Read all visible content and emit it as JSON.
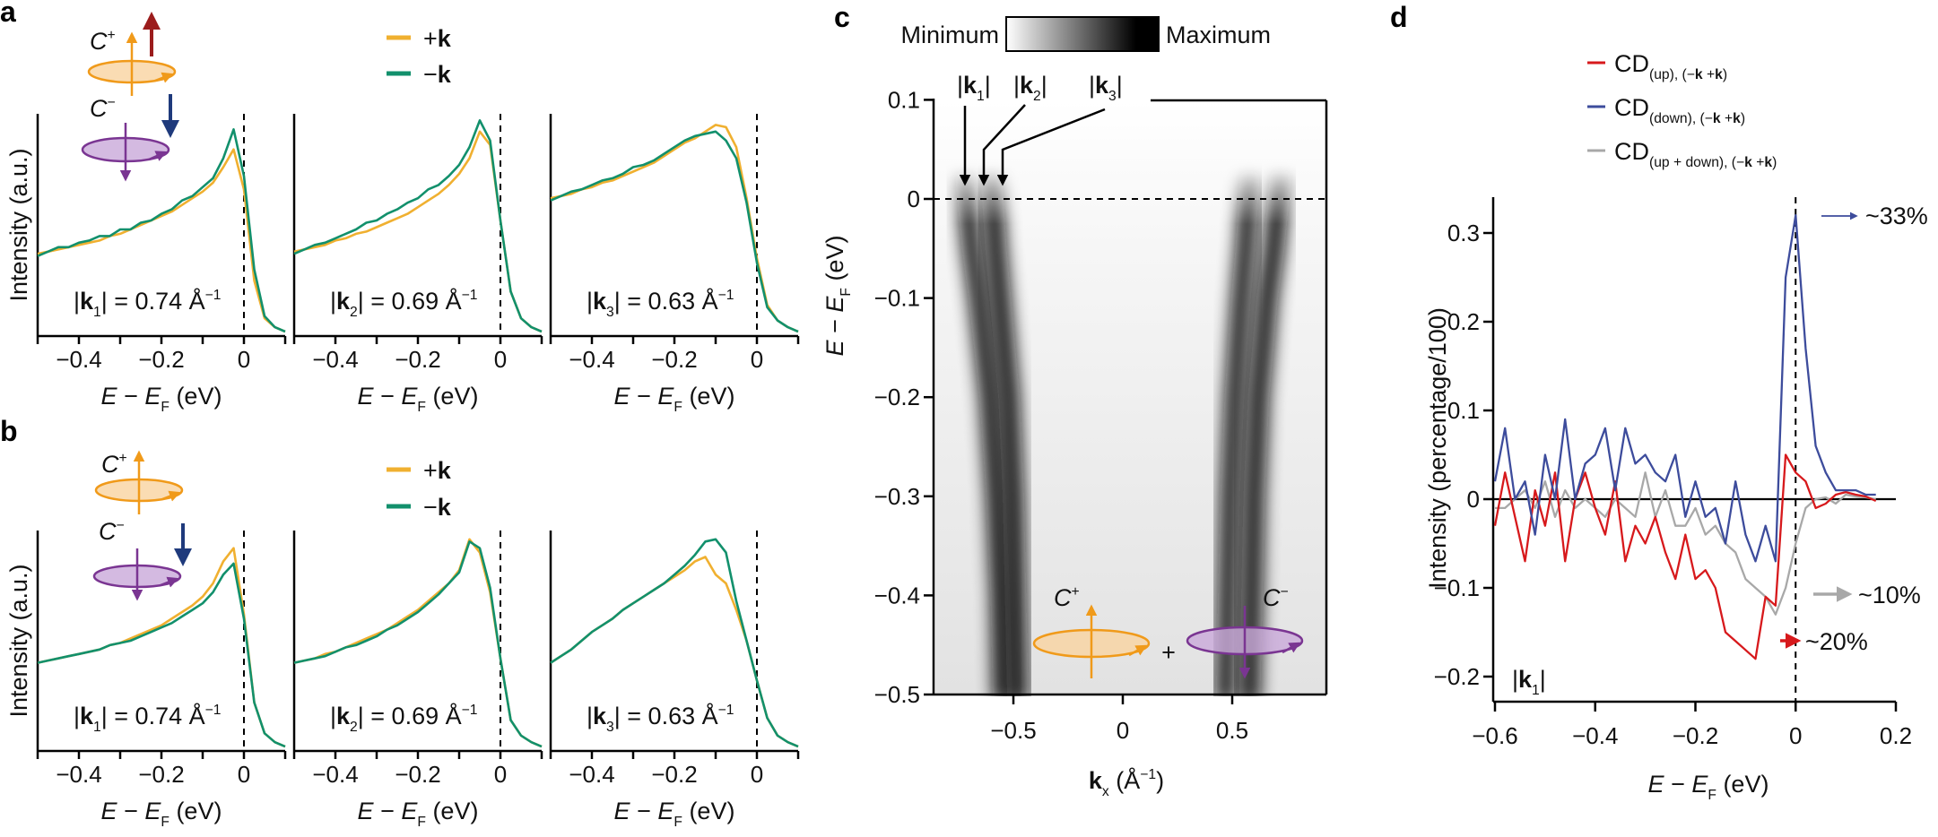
{
  "colors": {
    "plus_k": "#f0b030",
    "minus_k": "#12906c",
    "cd_up": "#d7191c",
    "cd_down": "#3d4c9c",
    "cd_sum": "#a8a8a8",
    "c_plus": "#f09a1a",
    "c_plus_fill": "#f9d3a0",
    "c_minus": "#7a3592",
    "c_minus_fill": "#c9a9d9",
    "spin_up": "#9b1c1c",
    "spin_down": "#1f3a7c"
  },
  "chart_data": [
    {
      "panel": "a",
      "type": "line",
      "legend": [
        {
          "sign": "+",
          "symbol": "k"
        },
        {
          "sign": "−",
          "symbol": "k"
        }
      ],
      "icons": {
        "c_plus": "C",
        "c_plus_sup": "+",
        "c_minus": "C",
        "c_minus_sup": "−",
        "spin_up_arrow": "arrow-up-icon",
        "spin_down_arrow": "arrow-down-icon"
      },
      "ylabel": "Intensity (a.u.)",
      "xlabel": {
        "e": "E",
        "minus": " − ",
        "ef": "E",
        "sub": "F",
        "unit": " (eV)"
      },
      "xlim": [
        -0.5,
        0.1
      ],
      "xticks": [
        "−0.4",
        "−0.2",
        "0"
      ],
      "x": [
        -0.5,
        -0.475,
        -0.45,
        -0.425,
        -0.4,
        -0.375,
        -0.35,
        -0.325,
        -0.3,
        -0.275,
        -0.25,
        -0.225,
        -0.2,
        -0.175,
        -0.15,
        -0.125,
        -0.1,
        -0.075,
        -0.05,
        -0.025,
        0,
        0.025,
        0.05,
        0.075,
        0.1
      ],
      "subplots": [
        {
          "k_label": {
            "bar": "|",
            "k": "k",
            "sub": "1",
            "rest": " = 0.74 Å",
            "sup": "−1"
          },
          "plus_k": [
            0.37,
            0.38,
            0.39,
            0.4,
            0.41,
            0.42,
            0.43,
            0.45,
            0.46,
            0.48,
            0.5,
            0.52,
            0.54,
            0.56,
            0.59,
            0.62,
            0.65,
            0.69,
            0.76,
            0.84,
            0.66,
            0.25,
            0.08,
            0.04,
            0.02
          ],
          "minus_k": [
            0.36,
            0.38,
            0.4,
            0.4,
            0.42,
            0.43,
            0.45,
            0.45,
            0.48,
            0.48,
            0.51,
            0.52,
            0.55,
            0.57,
            0.61,
            0.63,
            0.67,
            0.71,
            0.8,
            0.93,
            0.72,
            0.3,
            0.09,
            0.04,
            0.02
          ]
        },
        {
          "k_label": {
            "bar": "|",
            "k": "k",
            "sub": "2",
            "rest": " = 0.69 Å",
            "sup": "−1"
          },
          "plus_k": [
            0.38,
            0.39,
            0.4,
            0.41,
            0.43,
            0.44,
            0.46,
            0.47,
            0.49,
            0.51,
            0.53,
            0.55,
            0.58,
            0.61,
            0.64,
            0.68,
            0.73,
            0.8,
            0.92,
            0.86,
            0.52,
            0.2,
            0.08,
            0.04,
            0.02
          ],
          "minus_k": [
            0.37,
            0.39,
            0.41,
            0.42,
            0.44,
            0.46,
            0.48,
            0.51,
            0.52,
            0.55,
            0.57,
            0.6,
            0.62,
            0.66,
            0.68,
            0.72,
            0.77,
            0.85,
            0.97,
            0.88,
            0.52,
            0.2,
            0.08,
            0.04,
            0.02
          ]
        },
        {
          "k_label": {
            "bar": "|",
            "k": "k",
            "sub": "3",
            "rest": " = 0.63 Å",
            "sup": "−1"
          },
          "plus_k": [
            0.62,
            0.63,
            0.64,
            0.66,
            0.67,
            0.69,
            0.7,
            0.72,
            0.74,
            0.76,
            0.78,
            0.81,
            0.84,
            0.87,
            0.89,
            0.92,
            0.95,
            0.94,
            0.85,
            0.62,
            0.35,
            0.14,
            0.07,
            0.04,
            0.02
          ],
          "minus_k": [
            0.61,
            0.63,
            0.65,
            0.66,
            0.68,
            0.7,
            0.71,
            0.73,
            0.76,
            0.77,
            0.79,
            0.82,
            0.85,
            0.88,
            0.9,
            0.91,
            0.92,
            0.88,
            0.8,
            0.6,
            0.33,
            0.13,
            0.07,
            0.04,
            0.02
          ]
        }
      ]
    },
    {
      "panel": "b",
      "type": "line",
      "legend": [
        {
          "sign": "+",
          "symbol": "k"
        },
        {
          "sign": "−",
          "symbol": "k"
        }
      ],
      "icons": {
        "c_plus": "C",
        "c_plus_sup": "+",
        "c_minus": "C",
        "c_minus_sup": "−",
        "spin_down_arrow": "arrow-down-icon"
      },
      "ylabel": "Intensity (a.u.)",
      "xlabel": {
        "e": "E",
        "minus": " − ",
        "ef": "E",
        "sub": "F",
        "unit": " (eV)"
      },
      "xlim": [
        -0.5,
        0.1
      ],
      "xticks": [
        "−0.4",
        "−0.2",
        "0"
      ],
      "x": [
        -0.5,
        -0.475,
        -0.45,
        -0.425,
        -0.4,
        -0.375,
        -0.35,
        -0.325,
        -0.3,
        -0.275,
        -0.25,
        -0.225,
        -0.2,
        -0.175,
        -0.15,
        -0.125,
        -0.1,
        -0.075,
        -0.05,
        -0.025,
        0,
        0.025,
        0.05,
        0.075,
        0.1
      ],
      "subplots": [
        {
          "k_label": {
            "bar": "|",
            "k": "k",
            "sub": "1",
            "rest": " = 0.74 Å",
            "sup": "−1"
          },
          "plus_k": [
            0.4,
            0.41,
            0.42,
            0.43,
            0.44,
            0.45,
            0.46,
            0.48,
            0.49,
            0.51,
            0.53,
            0.55,
            0.57,
            0.6,
            0.63,
            0.66,
            0.7,
            0.76,
            0.86,
            0.92,
            0.62,
            0.22,
            0.08,
            0.04,
            0.02
          ],
          "minus_k": [
            0.4,
            0.41,
            0.42,
            0.43,
            0.44,
            0.45,
            0.46,
            0.48,
            0.49,
            0.5,
            0.52,
            0.54,
            0.56,
            0.58,
            0.61,
            0.64,
            0.67,
            0.72,
            0.8,
            0.85,
            0.6,
            0.22,
            0.08,
            0.04,
            0.02
          ]
        },
        {
          "k_label": {
            "bar": "|",
            "k": "k",
            "sub": "2",
            "rest": " = 0.69 Å",
            "sup": "−1"
          },
          "plus_k": [
            0.4,
            0.41,
            0.42,
            0.44,
            0.45,
            0.47,
            0.49,
            0.51,
            0.53,
            0.55,
            0.58,
            0.61,
            0.64,
            0.68,
            0.72,
            0.76,
            0.82,
            0.96,
            0.9,
            0.72,
            0.42,
            0.14,
            0.07,
            0.04,
            0.02
          ],
          "minus_k": [
            0.4,
            0.41,
            0.42,
            0.43,
            0.45,
            0.47,
            0.48,
            0.5,
            0.52,
            0.55,
            0.57,
            0.6,
            0.63,
            0.67,
            0.71,
            0.76,
            0.81,
            0.95,
            0.92,
            0.74,
            0.42,
            0.14,
            0.07,
            0.04,
            0.02
          ]
        },
        {
          "k_label": {
            "bar": "|",
            "k": "k",
            "sub": "3",
            "rest": " = 0.63 Å",
            "sup": "−1"
          },
          "plus_k": [
            0.4,
            0.43,
            0.46,
            0.5,
            0.54,
            0.57,
            0.6,
            0.64,
            0.67,
            0.7,
            0.73,
            0.76,
            0.79,
            0.82,
            0.86,
            0.88,
            0.8,
            0.76,
            0.64,
            0.5,
            0.32,
            0.15,
            0.07,
            0.04,
            0.02
          ],
          "minus_k": [
            0.4,
            0.43,
            0.46,
            0.5,
            0.54,
            0.57,
            0.6,
            0.64,
            0.67,
            0.7,
            0.73,
            0.76,
            0.8,
            0.84,
            0.89,
            0.95,
            0.96,
            0.9,
            0.68,
            0.5,
            0.32,
            0.15,
            0.07,
            0.04,
            0.02
          ]
        }
      ]
    },
    {
      "panel": "c",
      "type": "heatmap",
      "colorbar": {
        "min_label": "Minimum",
        "max_label": "Maximum",
        "colormap": "white-to-black"
      },
      "ylabel": {
        "e": "E",
        "minus": " − ",
        "ef": "E",
        "sub": "F",
        "unit": " (eV)"
      },
      "xlabel": {
        "k": "k",
        "sub": "x",
        "unit": " (Å",
        "sup": "−1",
        "close": ")"
      },
      "xlim": [
        -0.865,
        0.93
      ],
      "ylim": [
        -0.5,
        0.1
      ],
      "yticks": [
        {
          "v": 0.1,
          "t": "0.1"
        },
        {
          "v": 0,
          "t": "0"
        },
        {
          "v": -0.1,
          "t": "−0.1"
        },
        {
          "v": -0.2,
          "t": "−0.2"
        },
        {
          "v": -0.3,
          "t": "−0.3"
        },
        {
          "v": -0.4,
          "t": "−0.4"
        },
        {
          "v": -0.5,
          "t": "−0.5"
        }
      ],
      "xticks": [
        {
          "v": -0.5,
          "t": "−0.5"
        },
        {
          "v": 0,
          "t": "0"
        },
        {
          "v": 0.5,
          "t": "0.5"
        }
      ],
      "fermi_level_line": 0,
      "k_markers": [
        {
          "bar": "|",
          "k": "k",
          "sub": "1"
        },
        {
          "bar": "|",
          "k": "k",
          "sub": "2"
        },
        {
          "bar": "|",
          "k": "k",
          "sub": "3"
        }
      ],
      "k_marker_kx": [
        -0.72,
        -0.64,
        -0.55
      ],
      "bands": [
        [
          [
            0.02,
            -0.72
          ],
          [
            -0.05,
            -0.69
          ],
          [
            -0.1,
            -0.66
          ],
          [
            -0.2,
            -0.61
          ],
          [
            -0.3,
            -0.58
          ],
          [
            -0.4,
            -0.56
          ],
          [
            -0.5,
            -0.55
          ]
        ],
        [
          [
            0.02,
            -0.6
          ],
          [
            -0.05,
            -0.58
          ],
          [
            -0.1,
            -0.56
          ],
          [
            -0.2,
            -0.52
          ],
          [
            -0.3,
            -0.5
          ],
          [
            -0.4,
            -0.49
          ],
          [
            -0.5,
            -0.48
          ]
        ],
        [
          [
            0.02,
            0.58
          ],
          [
            -0.05,
            0.56
          ],
          [
            -0.1,
            0.54
          ],
          [
            -0.2,
            0.51
          ],
          [
            -0.3,
            0.49
          ],
          [
            -0.4,
            0.48
          ],
          [
            -0.5,
            0.47
          ]
        ],
        [
          [
            0.02,
            0.72
          ],
          [
            -0.05,
            0.69
          ],
          [
            -0.1,
            0.66
          ],
          [
            -0.2,
            0.62
          ],
          [
            -0.3,
            0.6
          ],
          [
            -0.4,
            0.59
          ],
          [
            -0.5,
            0.58
          ]
        ]
      ],
      "icons": {
        "c_plus": "C",
        "c_plus_sup": "+",
        "plus": "+",
        "c_minus": "C",
        "c_minus_sup": "−"
      }
    },
    {
      "panel": "d",
      "type": "line",
      "legend": [
        {
          "name": "CD",
          "sub": [
            "(up), (−",
            "k",
            " +",
            "k",
            ")"
          ]
        },
        {
          "name": "CD",
          "sub": [
            "(down), (−",
            "k",
            " +",
            "k",
            ")"
          ]
        },
        {
          "name": "CD",
          "sub": [
            "(up + down), (−",
            "k",
            " +",
            "k",
            ")"
          ]
        }
      ],
      "ylabel": "Intensity (percentage/100)",
      "xlabel": {
        "e": "E",
        "minus": " − ",
        "ef": "E",
        "sub": "F",
        "unit": " (eV)"
      },
      "xlim": [
        -0.6,
        0.2
      ],
      "ylim": [
        -0.21,
        0.34
      ],
      "xticks": [
        {
          "v": -0.6,
          "t": "−0.6"
        },
        {
          "v": -0.4,
          "t": "−0.4"
        },
        {
          "v": -0.2,
          "t": "−0.2"
        },
        {
          "v": 0,
          "t": "0"
        },
        {
          "v": 0.2,
          "t": "0.2"
        }
      ],
      "yticks": [
        {
          "v": 0.3,
          "t": "0.3"
        },
        {
          "v": 0.2,
          "t": "0.2"
        },
        {
          "v": 0.1,
          "t": "0.1"
        },
        {
          "v": 0,
          "t": "0"
        },
        {
          "v": -0.1,
          "t": "−0.1"
        },
        {
          "v": -0.2,
          "t": "−0.2"
        }
      ],
      "k_label": {
        "bar": "|",
        "k": "k",
        "sub": "1"
      },
      "annotations": [
        {
          "text": "~33%",
          "series": "down",
          "y": 0.32
        },
        {
          "text": "~10%",
          "series": "up + down",
          "y": -0.13
        },
        {
          "text": "~20%",
          "series": "up",
          "y": -0.19
        }
      ],
      "x": [
        -0.6,
        -0.58,
        -0.56,
        -0.54,
        -0.52,
        -0.5,
        -0.48,
        -0.46,
        -0.44,
        -0.42,
        -0.4,
        -0.38,
        -0.36,
        -0.34,
        -0.32,
        -0.3,
        -0.28,
        -0.26,
        -0.24,
        -0.22,
        -0.2,
        -0.18,
        -0.16,
        -0.14,
        -0.12,
        -0.1,
        -0.08,
        -0.06,
        -0.04,
        -0.02,
        0,
        0.02,
        0.04,
        0.06,
        0.08,
        0.1,
        0.12,
        0.14,
        0.16
      ],
      "series": [
        {
          "values": [
            -0.03,
            0.03,
            -0.02,
            -0.07,
            0.01,
            -0.03,
            0.03,
            -0.07,
            0.0,
            0.03,
            -0.01,
            -0.04,
            0.02,
            -0.07,
            -0.03,
            -0.05,
            -0.02,
            -0.06,
            -0.09,
            -0.04,
            -0.09,
            -0.08,
            -0.1,
            -0.15,
            -0.16,
            -0.17,
            -0.18,
            -0.11,
            -0.12,
            0.05,
            0.03,
            0.02,
            -0.01,
            -0.005,
            0.005,
            0.008,
            0.005,
            0.003,
            -0.002
          ]
        },
        {
          "values": [
            0.02,
            0.08,
            0.0,
            0.02,
            -0.04,
            0.05,
            0.0,
            0.09,
            0.0,
            0.04,
            0.05,
            0.08,
            0.01,
            0.08,
            0.04,
            0.05,
            0.03,
            0.02,
            0.05,
            -0.02,
            0.02,
            -0.02,
            -0.01,
            -0.05,
            0.02,
            -0.04,
            -0.07,
            -0.03,
            -0.07,
            0.25,
            0.32,
            0.17,
            0.06,
            0.03,
            0.01,
            0.01,
            0.01,
            0.005,
            0.005
          ]
        },
        {
          "values": [
            -0.01,
            -0.01,
            0.0,
            0.01,
            -0.01,
            0.02,
            -0.02,
            0.01,
            -0.01,
            0.0,
            -0.01,
            -0.02,
            0.0,
            -0.01,
            -0.02,
            0.03,
            -0.02,
            0.01,
            -0.03,
            -0.03,
            -0.01,
            -0.04,
            -0.03,
            -0.05,
            -0.06,
            -0.09,
            -0.1,
            -0.11,
            -0.13,
            -0.1,
            -0.05,
            -0.01,
            0.0,
            0.002,
            -0.005,
            0.005,
            0.003,
            0.002,
            0.0
          ]
        }
      ]
    }
  ]
}
